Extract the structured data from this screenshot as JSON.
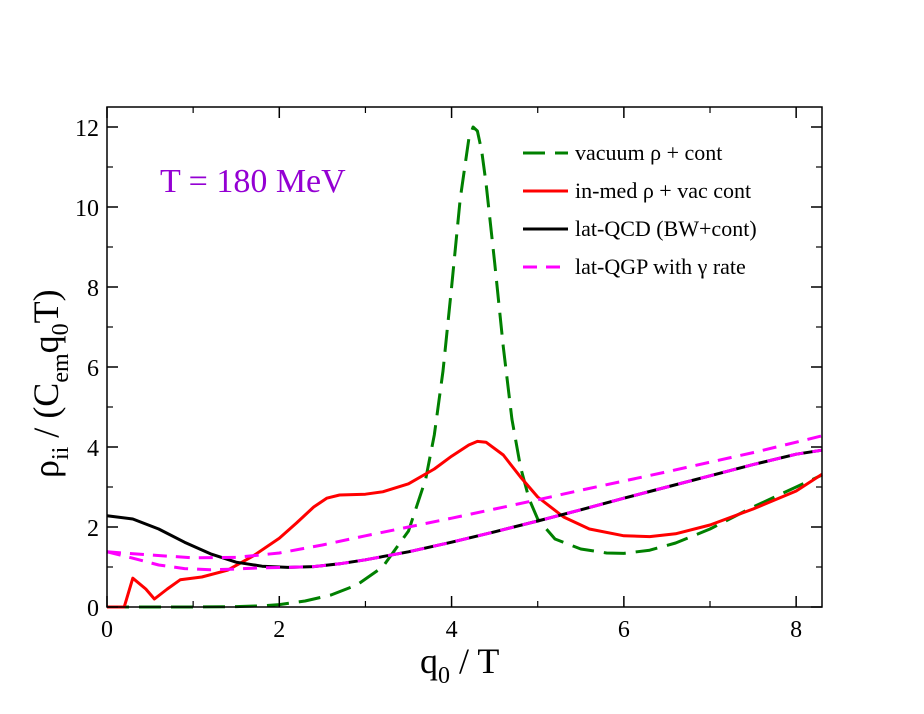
{
  "chart_data": {
    "type": "line",
    "xlabel": {
      "main": "q",
      "sub": "0",
      "rest": " / T"
    },
    "ylabel": {
      "rho": "ρ",
      "sub1": "ii",
      "mid": " / (C",
      "sub2": "em",
      "q": "q",
      "sub3": "0",
      "end": "T)"
    },
    "xlim": [
      0,
      8.3
    ],
    "ylim": [
      0,
      12.5
    ],
    "xticks": [
      0,
      2,
      4,
      6,
      8
    ],
    "yticks": [
      0,
      2,
      4,
      6,
      8,
      10,
      12
    ],
    "annotation": {
      "text": "T = 180 MeV",
      "color": "#9400d3"
    },
    "legend_position": "top-right",
    "series": [
      {
        "name": "vacuum ρ + cont",
        "color": "#008000",
        "dash": "long-dash",
        "x": [
          0,
          0.5,
          1.0,
          1.5,
          1.8,
          2.0,
          2.3,
          2.6,
          2.9,
          3.2,
          3.5,
          3.7,
          3.8,
          3.9,
          4.0,
          4.1,
          4.2,
          4.25,
          4.3,
          4.35,
          4.4,
          4.5,
          4.6,
          4.7,
          4.8,
          4.9,
          5.0,
          5.2,
          5.5,
          5.8,
          6.0,
          6.3,
          6.6,
          7.0,
          7.5,
          8.0,
          8.3
        ],
        "y": [
          0.0,
          0.0,
          0.0,
          0.01,
          0.03,
          0.06,
          0.15,
          0.3,
          0.55,
          1.0,
          1.9,
          3.2,
          4.3,
          5.9,
          8.0,
          10.2,
          11.7,
          12.0,
          11.9,
          11.4,
          10.6,
          8.6,
          6.5,
          4.7,
          3.5,
          2.7,
          2.2,
          1.7,
          1.45,
          1.35,
          1.34,
          1.42,
          1.6,
          1.95,
          2.5,
          3.0,
          3.3
        ]
      },
      {
        "name": "in-med ρ  + vac cont",
        "color": "#ff0000",
        "dash": "solid",
        "x": [
          0,
          0.2,
          0.3,
          0.45,
          0.55,
          0.7,
          0.85,
          1.1,
          1.4,
          1.7,
          2.0,
          2.2,
          2.4,
          2.55,
          2.7,
          3.0,
          3.2,
          3.5,
          3.8,
          4.0,
          4.2,
          4.3,
          4.4,
          4.6,
          4.8,
          5.0,
          5.3,
          5.6,
          6.0,
          6.3,
          6.6,
          7.0,
          7.5,
          8.0,
          8.3
        ],
        "y": [
          0.0,
          0.0,
          0.72,
          0.45,
          0.2,
          0.45,
          0.68,
          0.75,
          0.92,
          1.28,
          1.72,
          2.1,
          2.5,
          2.72,
          2.8,
          2.82,
          2.88,
          3.08,
          3.45,
          3.77,
          4.05,
          4.14,
          4.12,
          3.8,
          3.25,
          2.75,
          2.25,
          1.95,
          1.78,
          1.76,
          1.83,
          2.05,
          2.45,
          2.9,
          3.32
        ]
      },
      {
        "name": "lat-QCD (BW+cont)",
        "color": "#000000",
        "dash": "solid",
        "x": [
          0,
          0.3,
          0.6,
          0.9,
          1.2,
          1.5,
          1.8,
          2.1,
          2.4,
          2.7,
          3.0,
          3.5,
          4.0,
          4.5,
          5.0,
          5.5,
          6.0,
          6.5,
          7.0,
          7.5,
          8.0,
          8.3
        ],
        "y": [
          2.28,
          2.2,
          1.95,
          1.62,
          1.33,
          1.12,
          1.02,
          0.99,
          1.01,
          1.08,
          1.18,
          1.38,
          1.62,
          1.88,
          2.15,
          2.43,
          2.72,
          3.0,
          3.28,
          3.56,
          3.82,
          3.92
        ]
      },
      {
        "name": "lat-QGP with γ rate",
        "color": "#ff00ff",
        "dash": "short-dash",
        "x": [
          0,
          0.5,
          1.0,
          1.5,
          2.0,
          2.5,
          3.0,
          3.5,
          4.0,
          4.5,
          5.0,
          5.5,
          6.0,
          6.5,
          7.0,
          7.5,
          8.0,
          8.3
        ],
        "y": [
          1.38,
          1.3,
          1.23,
          1.24,
          1.35,
          1.55,
          1.78,
          2.0,
          2.22,
          2.45,
          2.68,
          2.92,
          3.15,
          3.38,
          3.62,
          3.86,
          4.12,
          4.28
        ]
      },
      {
        "name": "",
        "color": "#ff00ff",
        "dash": "short-dash",
        "x": [
          0,
          0.3,
          0.6,
          0.9,
          1.2,
          1.5,
          1.8,
          2.1,
          2.4,
          2.7,
          3.0
        ],
        "y": [
          1.38,
          1.22,
          1.05,
          0.96,
          0.93,
          0.95,
          0.98,
          0.99,
          1.01,
          1.08,
          1.18
        ]
      },
      {
        "name": "",
        "color": "#ff00ff",
        "dash": "short-dash",
        "x": [
          3.0,
          3.5,
          4.0,
          4.5,
          5.0,
          5.5,
          6.0,
          6.5,
          7.0,
          7.5,
          8.0,
          8.3
        ],
        "y": [
          1.18,
          1.38,
          1.62,
          1.88,
          2.15,
          2.43,
          2.72,
          3.0,
          3.28,
          3.56,
          3.82,
          3.92
        ]
      }
    ]
  }
}
